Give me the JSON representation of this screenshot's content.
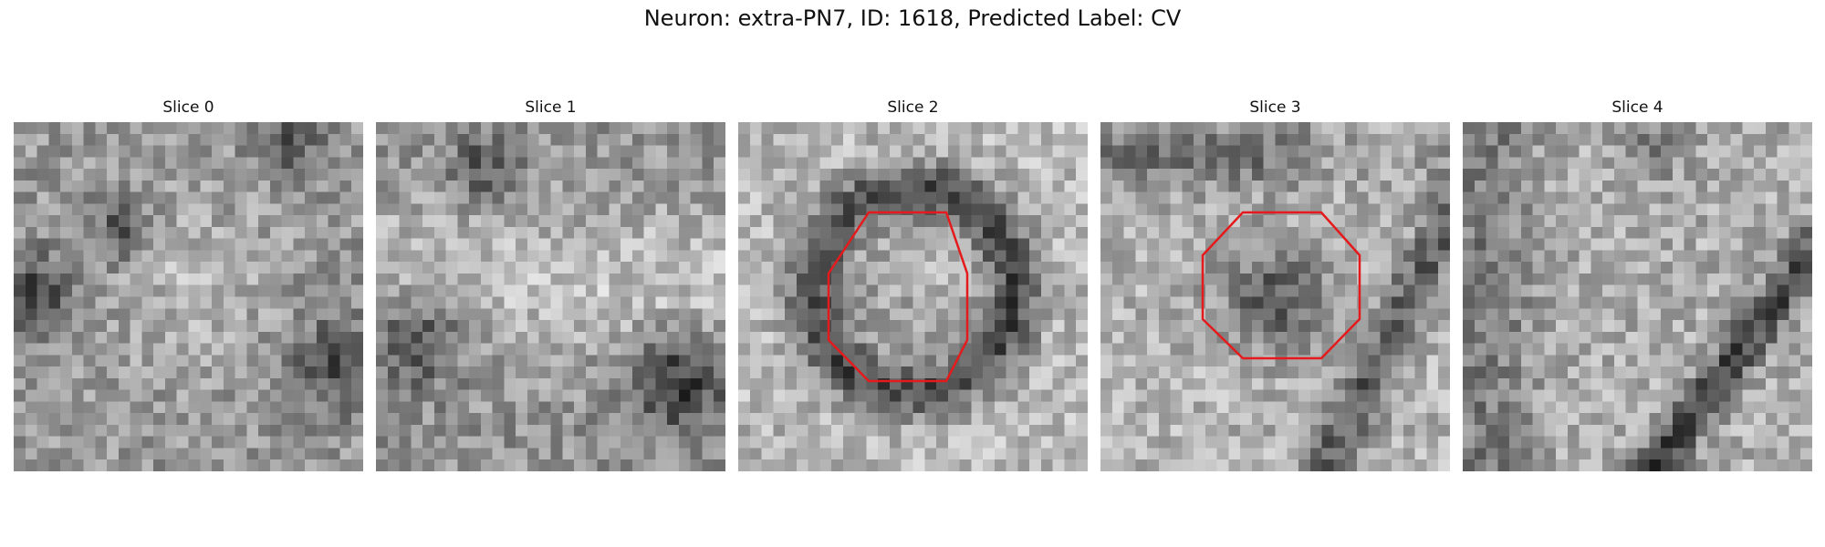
{
  "figure": {
    "title": "Neuron: extra-PN7, ID: 1618, Predicted Label: CV"
  },
  "slices": [
    {
      "label": "Slice 0",
      "roi": false,
      "seed": 11,
      "pattern": "diffuse-dark-blobs"
    },
    {
      "label": "Slice 1",
      "roi": false,
      "seed": 23,
      "pattern": "bright-band-dark-sides"
    },
    {
      "label": "Slice 2",
      "roi": true,
      "seed": 37,
      "pattern": "dark-ring-bright-center"
    },
    {
      "label": "Slice 3",
      "roi": true,
      "seed": 51,
      "pattern": "dark-center-diagonal-streak"
    },
    {
      "label": "Slice 4",
      "roi": false,
      "seed": 67,
      "pattern": "diagonal-dark-streak"
    }
  ],
  "colors": {
    "roi_outline": "#e41a1c"
  }
}
